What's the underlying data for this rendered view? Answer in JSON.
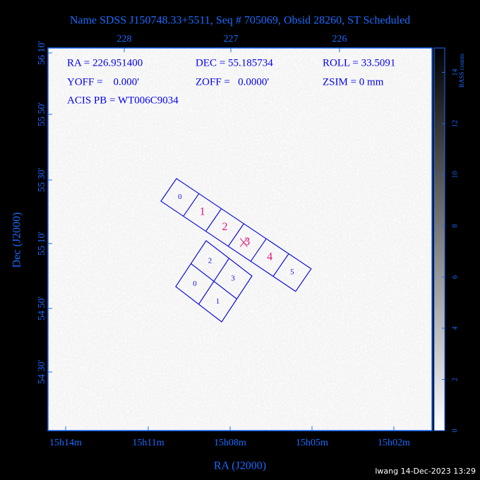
{
  "header": {
    "title": "Name SDSS J150748.33+5511, Seq # 705069, Obsid 28260, ST Scheduled"
  },
  "info": {
    "ra": "RA = 226.951400",
    "dec": "DEC = 55.185734",
    "roll": "ROLL = 33.5091",
    "yoff": "YOFF =    0.000'",
    "zoff": "ZOFF =   0.0000'",
    "zsim": "ZSIM = 0 mm",
    "acis_pb": "ACIS PB = WT006C9034"
  },
  "axes": {
    "x_label": "RA (J2000)",
    "y_label": "Dec (J2000)",
    "top_ticks": [
      "228",
      "227",
      "226"
    ],
    "bottom_ticks": [
      "15h14m",
      "15h11m",
      "15h08m",
      "15h05m",
      "15h02m"
    ],
    "left_ticks": [
      "56 10'",
      "55 50'",
      "55 30'",
      "55 10'",
      "54 50'",
      "54 30'"
    ]
  },
  "colorbar": {
    "label": "RASS counts",
    "ticks": [
      "0",
      "2",
      "4",
      "6",
      "8",
      "10",
      "12",
      "14"
    ]
  },
  "acis_s": {
    "chips": [
      "0",
      "1",
      "2",
      "3",
      "4",
      "5"
    ]
  },
  "acis_i": {
    "chips": [
      "2",
      "3",
      "0",
      "1"
    ]
  },
  "footer": {
    "stamp": "lwang 14-Dec-2023 13:29"
  }
}
